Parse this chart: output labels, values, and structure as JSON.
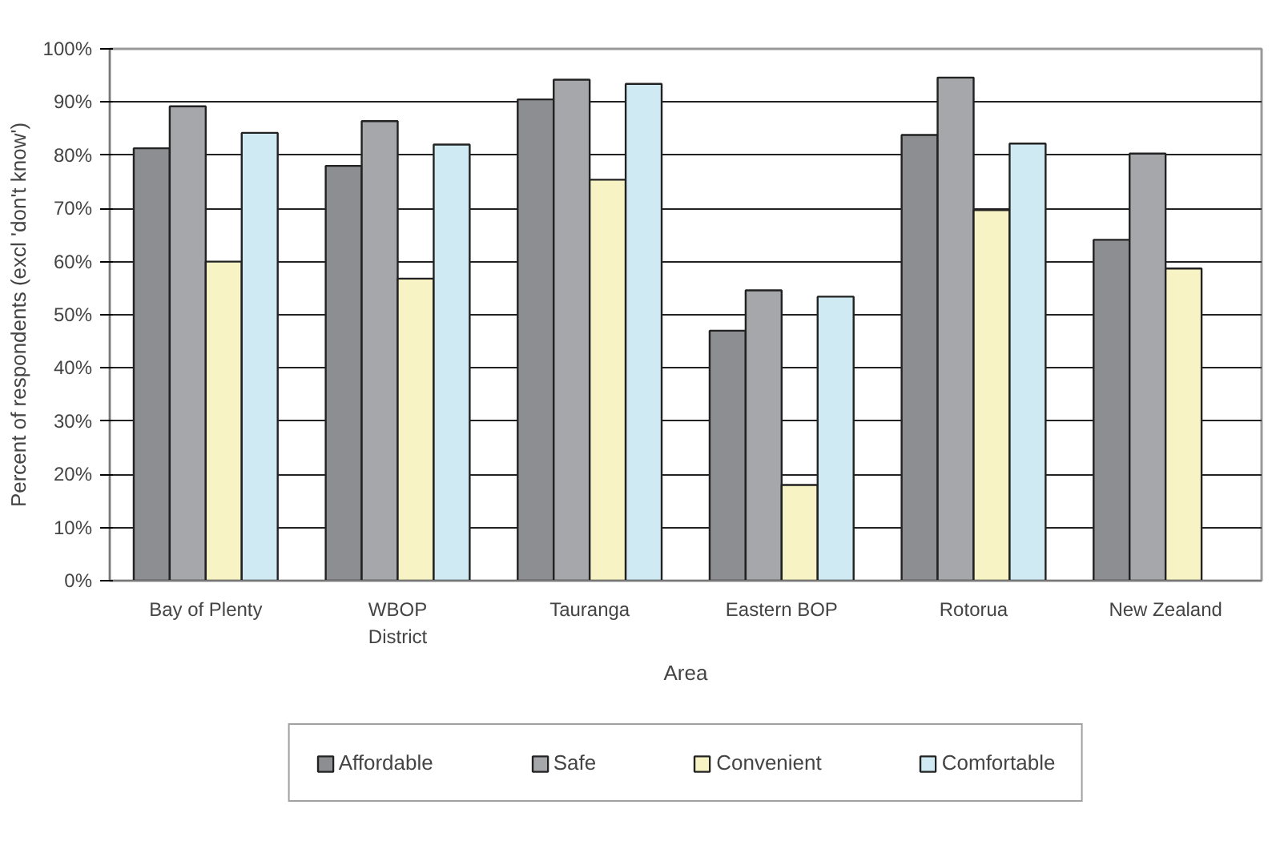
{
  "chart_data": {
    "type": "bar",
    "xlabel": "Area",
    "ylabel": "Percent of respondents (excl 'don't know')",
    "categories": [
      "Bay of Plenty",
      "WBOP\nDistrict",
      "Tauranga",
      "Eastern BOP",
      "Rotorua",
      "New Zealand"
    ],
    "series": [
      {
        "name": "Affordable",
        "color": "#8d8e92",
        "values": [
          81.3,
          78,
          90.5,
          47,
          83.8,
          64.1
        ]
      },
      {
        "name": "Safe",
        "color": "#a6a7ab",
        "values": [
          89.2,
          86.4,
          94.2,
          54.6,
          94.6,
          80.3
        ]
      },
      {
        "name": "Convenient",
        "color": "#f7f3c4",
        "values": [
          60,
          56.8,
          75.4,
          18,
          69.7,
          58.7
        ]
      },
      {
        "name": "Comfortable",
        "color": "#cfeaf3",
        "values": [
          84.2,
          82,
          93.4,
          53.4,
          82.2,
          null
        ]
      }
    ],
    "ylim": [
      0,
      100
    ],
    "yticks": [
      {
        "value": 0,
        "label": "0%"
      },
      {
        "value": 10,
        "label": "10%"
      },
      {
        "value": 20,
        "label": "20%"
      },
      {
        "value": 30,
        "label": "30%"
      },
      {
        "value": 40,
        "label": "40%"
      },
      {
        "value": 50,
        "label": "50%"
      },
      {
        "value": 60,
        "label": "60%"
      },
      {
        "value": 70,
        "label": "70%"
      },
      {
        "value": 80,
        "label": "80%"
      },
      {
        "value": 90,
        "label": "90%"
      },
      {
        "value": 100,
        "label": "100%"
      }
    ],
    "grid": "y",
    "legend": "bottom"
  }
}
